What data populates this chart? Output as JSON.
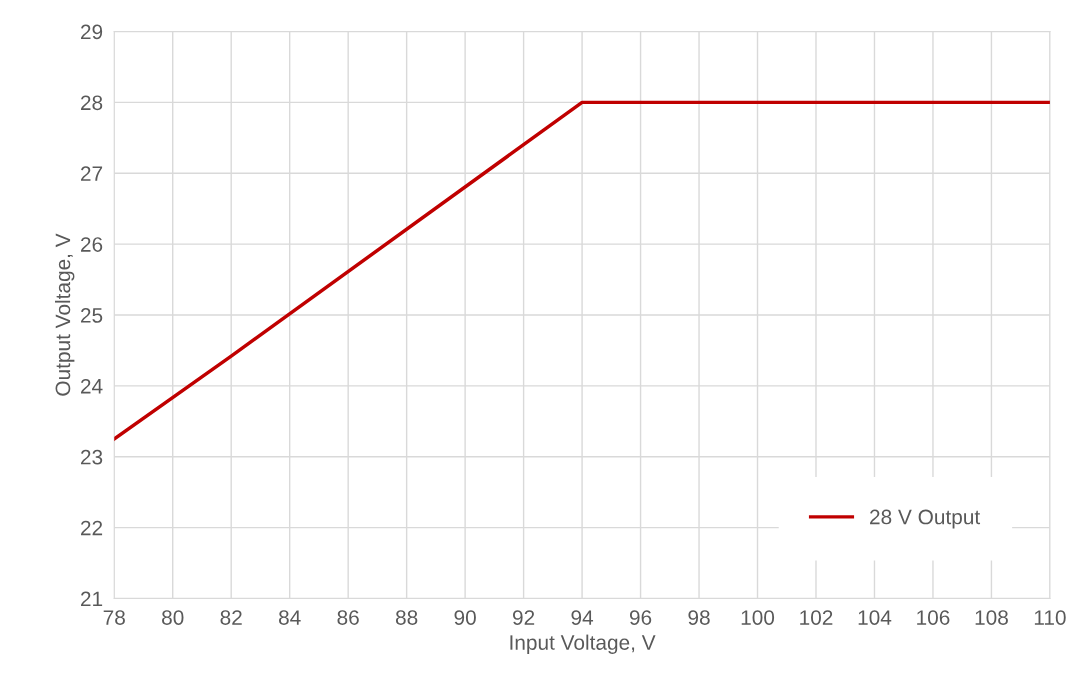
{
  "chart_data": {
    "type": "line",
    "xlabel": "Input Voltage, V",
    "ylabel": "Output Voltage, V",
    "series": [
      {
        "name": "28 V Output",
        "color": "#c00000",
        "x": [
          78,
          82,
          94,
          110
        ],
        "values": [
          23.25,
          24.42,
          28,
          28
        ]
      }
    ],
    "xlim": [
      78,
      110
    ],
    "xticks": [
      78,
      80,
      82,
      84,
      86,
      88,
      90,
      92,
      94,
      96,
      98,
      100,
      102,
      104,
      106,
      108,
      110
    ],
    "ylim": [
      21,
      29
    ],
    "yticks": [
      21,
      22,
      23,
      24,
      25,
      26,
      27,
      28,
      29
    ],
    "grid": true,
    "legend": "bottom right",
    "marker": "none",
    "line_style": "solid"
  }
}
